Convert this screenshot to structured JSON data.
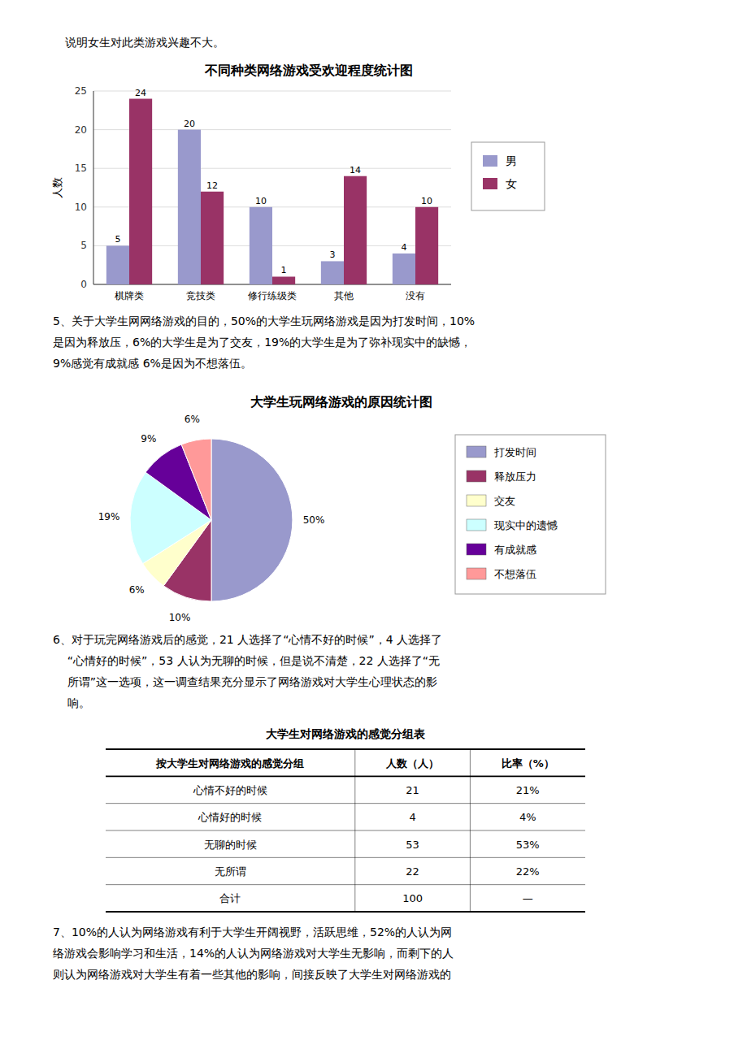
{
  "intro_text": "说明女生对此类游戏兴趣不大。",
  "para5_lines": [
    "5、关于大学生网网络游戏的目的，50%的大学生玩网络游戏是因为打发时间，10%",
    "是因为释放压，6%的大学生是为了交友，19%的大学生是为了弥补现实中的缺憾，",
    "9%感觉有成就感 6%是因为不想落伍。"
  ],
  "para6_lines": [
    "6、对于玩完网络游戏后的感觉，21 人选择了“心情不好的时候”，4 人选择了",
    "    “心情好的时候”，53 人认为无聊的时候，但是说不清楚，22 人选择了“无",
    "    所谓”这一选项，这一调查结果充分显示了网络游戏对大学生心理状态的影",
    "    响。"
  ],
  "para7_lines": [
    "7、10%的人认为网络游戏有利于大学生开阔视野，活跃思维，52%的人认为网",
    "络游戏会影响学习和生活，14%的人认为网络游戏对大学生无影响，而剩下的人",
    "则认为网络游戏对大学生有着一些其他的影响，间接反映了大学生对网络游戏的"
  ],
  "chart_data": [
    {
      "type": "bar",
      "title": "不同种类网络游戏受欢迎程度统计图",
      "categories": [
        "棋牌类",
        "竞技类",
        "修行练级类",
        "其他",
        "没有"
      ],
      "series": [
        {
          "name": "男",
          "color": "#9999CC",
          "values": [
            5,
            20,
            10,
            3,
            4
          ]
        },
        {
          "name": "女",
          "color": "#993366",
          "values": [
            24,
            12,
            1,
            14,
            10
          ]
        }
      ],
      "y_label": "人数",
      "ylim": [
        0,
        25
      ],
      "yticks": [
        0,
        5,
        10,
        15,
        20,
        25
      ],
      "grid": true,
      "data_labels": true,
      "legend": "right"
    },
    {
      "type": "pie",
      "title": "大学生玩网络游戏的原因统计图",
      "categories": [
        "打发时间",
        "释放压力",
        "交友",
        "现实中的遗憾",
        "有成就感",
        "不想落伍"
      ],
      "values": [
        50,
        10,
        6,
        19,
        9,
        6
      ],
      "value_labels": [
        "50%",
        "10%",
        "6%",
        "19%",
        "9%",
        "6%"
      ],
      "colors": [
        "#9999CC",
        "#993366",
        "#FFFFCC",
        "#CCFFFF",
        "#660099",
        "#FF9999"
      ],
      "data_labels": true,
      "legend": "right"
    },
    {
      "type": "table",
      "title": "大学生对网络游戏的感觉分组表",
      "headers": [
        "按大学生对网络游戏的感觉分组",
        "人数（人）",
        "比率（%）"
      ],
      "rows": [
        [
          "心情不好的时候",
          "21",
          "21%"
        ],
        [
          "心情好的时候",
          "4",
          "4%"
        ],
        [
          "无聊的时候",
          "53",
          "53%"
        ],
        [
          "无所谓",
          "22",
          "22%"
        ],
        [
          "合计",
          "100",
          "—"
        ]
      ]
    }
  ]
}
